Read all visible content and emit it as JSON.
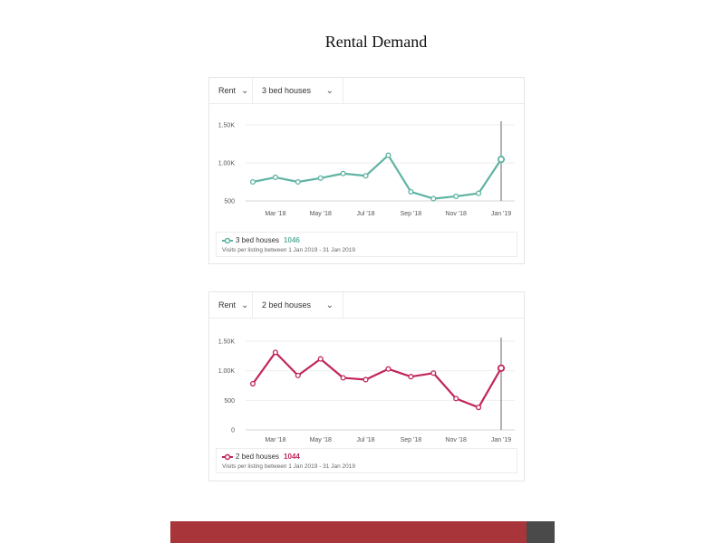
{
  "page": {
    "title": "Rental Demand"
  },
  "chart_data": [
    {
      "type": "line",
      "controls": {
        "listing_type": "Rent",
        "property": "3 bed houses"
      },
      "x_ticks": [
        "Mar '18",
        "May '18",
        "Jul '18",
        "Sep '18",
        "Nov '18",
        "Jan '19"
      ],
      "y_ticks": [
        "500",
        "1.00K",
        "1.50K"
      ],
      "ylim": [
        500,
        1500
      ],
      "series": [
        {
          "name": "3 bed houses",
          "color": "#5fb3a3",
          "x": [
            "Feb '18",
            "Mar '18",
            "Apr '18",
            "May '18",
            "Jun '18",
            "Jul '18",
            "Aug '18",
            "Sep '18",
            "Oct '18",
            "Nov '18",
            "Dec '18",
            "Jan '19"
          ],
          "values": [
            750,
            810,
            750,
            800,
            860,
            830,
            1100,
            620,
            530,
            560,
            600,
            1046
          ]
        }
      ],
      "legend": {
        "label": "3 bed houses",
        "value": "1046",
        "subtitle": "Visits per listing between 1 Jan 2019 - 31 Jan 2019"
      }
    },
    {
      "type": "line",
      "controls": {
        "listing_type": "Rent",
        "property": "2 bed houses"
      },
      "x_ticks": [
        "Mar '18",
        "May '18",
        "Jul '18",
        "Sep '18",
        "Nov '18",
        "Jan '19"
      ],
      "y_ticks": [
        "0",
        "500",
        "1.00K",
        "1.50K"
      ],
      "ylim": [
        0,
        1500
      ],
      "series": [
        {
          "name": "2 bed houses",
          "color": "#c0265a",
          "x": [
            "Feb '18",
            "Mar '18",
            "Apr '18",
            "May '18",
            "Jun '18",
            "Jul '18",
            "Aug '18",
            "Sep '18",
            "Oct '18",
            "Nov '18",
            "Dec '18",
            "Jan '19"
          ],
          "values": [
            780,
            1310,
            920,
            1200,
            880,
            850,
            1030,
            900,
            960,
            530,
            380,
            1044
          ]
        }
      ],
      "legend": {
        "label": "2 bed houses",
        "value": "1044",
        "subtitle": "Visits per listing between 1 Jan 2019 - 31 Jan 2019"
      }
    }
  ],
  "colors": {
    "bottom_bar": "#a8353a",
    "bottom_bar_dark": "#4a4a4a"
  }
}
